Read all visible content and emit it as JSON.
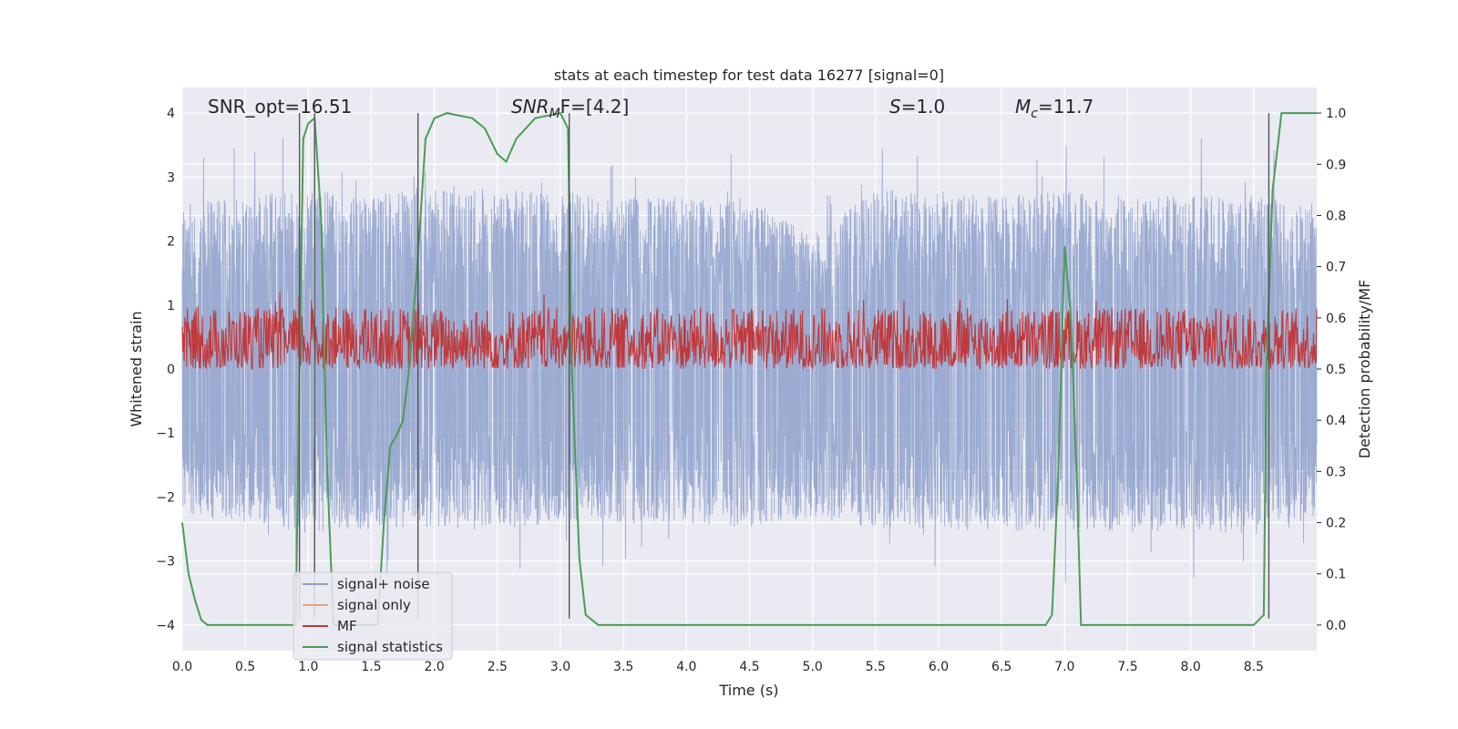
{
  "chart_data": {
    "type": "line",
    "title": "stats at each timestep for test data 16277 [signal=0]",
    "xlabel": "Time (s)",
    "ylabel": "Whitened strain",
    "y2label": "Detection probability/MF",
    "xlim": [
      0,
      9.0
    ],
    "ylim": [
      -4.4,
      4.4
    ],
    "y2lim": [
      -0.05,
      1.05
    ],
    "xticks": [
      0.0,
      0.5,
      1.0,
      1.5,
      2.0,
      2.5,
      3.0,
      3.5,
      4.0,
      4.5,
      5.0,
      5.5,
      6.0,
      6.5,
      7.0,
      7.5,
      8.0,
      8.5
    ],
    "xtick_labels": [
      "0.0",
      "0.5",
      "1.0",
      "1.5",
      "2.0",
      "2.5",
      "3.0",
      "3.5",
      "4.0",
      "4.5",
      "5.0",
      "5.5",
      "6.0",
      "6.5",
      "7.0",
      "7.5",
      "8.0",
      "8.5"
    ],
    "yticks": [
      4,
      3,
      2,
      1,
      0,
      -1,
      -2,
      -3,
      -4
    ],
    "ytick_labels": [
      "4",
      "3",
      "2",
      "1",
      "0",
      "−1",
      "−2",
      "−3",
      "−4"
    ],
    "y2ticks": [
      1.0,
      0.9,
      0.8,
      0.7,
      0.6,
      0.5,
      0.4,
      0.3,
      0.2,
      0.1,
      0.0
    ],
    "y2tick_labels": [
      "1.0",
      "0.9",
      "0.8",
      "0.7",
      "0.6",
      "0.5",
      "0.4",
      "0.3",
      "0.2",
      "0.1",
      "0.0"
    ],
    "grid": true,
    "legend_position": "lower-left",
    "annotations": {
      "snr_opt": "SNR_opt=16.51",
      "snr_mf": "SNR",
      "snr_mf_sub": "M",
      "snr_mf_tail": "F=[4.2]",
      "s_sym": "S",
      "s_val": "=1.0",
      "mc_sym": "M",
      "mc_sub": "c",
      "mc_val": "=11.7"
    },
    "vertical_lines_x": [
      0.93,
      1.05,
      1.87,
      3.07,
      8.62
    ],
    "series": [
      {
        "name": "signal+ noise",
        "color": "#8da0cb",
        "axis": "left",
        "envelope_upper": [
          [
            0.0,
            2.6
          ],
          [
            0.5,
            2.7
          ],
          [
            1.0,
            2.8
          ],
          [
            1.5,
            2.7
          ],
          [
            2.0,
            2.9
          ],
          [
            2.5,
            2.8
          ],
          [
            3.0,
            2.8
          ],
          [
            3.5,
            2.7
          ],
          [
            4.0,
            2.7
          ],
          [
            4.5,
            2.7
          ],
          [
            5.0,
            2.1
          ],
          [
            5.5,
            2.8
          ],
          [
            6.0,
            2.8
          ],
          [
            6.5,
            2.7
          ],
          [
            7.0,
            2.8
          ],
          [
            7.5,
            2.7
          ],
          [
            8.0,
            2.7
          ],
          [
            8.5,
            2.7
          ],
          [
            9.0,
            2.6
          ]
        ],
        "envelope_lower": [
          [
            0.0,
            -2.3
          ],
          [
            0.5,
            -2.4
          ],
          [
            1.0,
            -2.6
          ],
          [
            1.5,
            -2.5
          ],
          [
            2.0,
            -2.5
          ],
          [
            2.5,
            -2.5
          ],
          [
            3.0,
            -2.4
          ],
          [
            3.5,
            -2.4
          ],
          [
            4.0,
            -2.4
          ],
          [
            4.5,
            -2.5
          ],
          [
            5.0,
            -2.3
          ],
          [
            5.5,
            -2.5
          ],
          [
            6.0,
            -2.5
          ],
          [
            6.5,
            -2.6
          ],
          [
            7.0,
            -2.5
          ],
          [
            7.5,
            -2.6
          ],
          [
            8.0,
            -2.5
          ],
          [
            8.5,
            -2.6
          ],
          [
            9.0,
            -2.4
          ]
        ]
      },
      {
        "name": "signal only",
        "color": "#e8a07e",
        "axis": "left",
        "points": []
      },
      {
        "name": "MF",
        "color": "#c0393b",
        "axis": "right",
        "band": [
          0.5,
          0.62
        ]
      },
      {
        "name": "signal statistics",
        "color": "#4c9c54",
        "axis": "right",
        "points": [
          [
            0.0,
            0.2
          ],
          [
            0.05,
            0.1
          ],
          [
            0.1,
            0.05
          ],
          [
            0.15,
            0.01
          ],
          [
            0.2,
            0.0
          ],
          [
            0.5,
            0.0
          ],
          [
            0.9,
            0.0
          ],
          [
            0.93,
            0.5
          ],
          [
            0.96,
            0.95
          ],
          [
            1.0,
            0.98
          ],
          [
            1.05,
            0.99
          ],
          [
            1.1,
            0.8
          ],
          [
            1.15,
            0.3
          ],
          [
            1.2,
            0.0
          ],
          [
            1.55,
            0.0
          ],
          [
            1.6,
            0.2
          ],
          [
            1.65,
            0.35
          ],
          [
            1.7,
            0.37
          ],
          [
            1.75,
            0.4
          ],
          [
            1.8,
            0.5
          ],
          [
            1.87,
            0.72
          ],
          [
            1.93,
            0.95
          ],
          [
            2.0,
            0.99
          ],
          [
            2.1,
            1.0
          ],
          [
            2.3,
            0.99
          ],
          [
            2.4,
            0.97
          ],
          [
            2.5,
            0.92
          ],
          [
            2.57,
            0.905
          ],
          [
            2.65,
            0.95
          ],
          [
            2.8,
            0.99
          ],
          [
            3.0,
            1.0
          ],
          [
            3.06,
            0.97
          ],
          [
            3.09,
            0.5
          ],
          [
            3.15,
            0.13
          ],
          [
            3.2,
            0.02
          ],
          [
            3.3,
            0.0
          ],
          [
            6.85,
            0.0
          ],
          [
            6.9,
            0.02
          ],
          [
            6.95,
            0.3
          ],
          [
            7.0,
            0.74
          ],
          [
            7.05,
            0.6
          ],
          [
            7.1,
            0.25
          ],
          [
            7.13,
            0.0
          ],
          [
            8.5,
            0.0
          ],
          [
            8.58,
            0.02
          ],
          [
            8.6,
            0.5
          ],
          [
            8.65,
            0.85
          ],
          [
            8.72,
            1.0
          ],
          [
            9.0,
            1.0
          ]
        ]
      }
    ]
  }
}
